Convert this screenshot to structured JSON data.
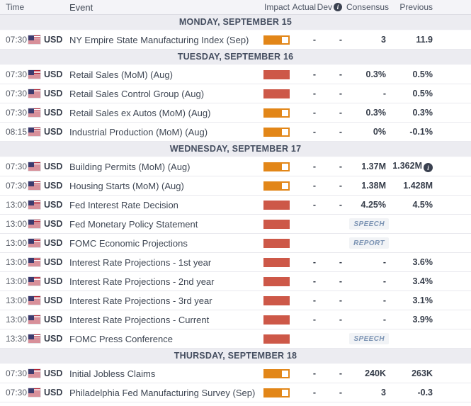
{
  "colors": {
    "impact_high": "#cd5848",
    "impact_medium": "#e28618",
    "flag_red": "#b22234",
    "flag_blue": "#3c3b6e",
    "section_bg": "#ececf1",
    "header_bg": "#f4f4f8",
    "badge_text": "#7b93b3"
  },
  "header": {
    "time": "Time",
    "event": "Event",
    "impact": "Impact",
    "actual": "Actual",
    "dev": "Dev",
    "dev_info_icon": "i",
    "consensus": "Consensus",
    "previous": "Previous"
  },
  "sections": [
    {
      "title": "MONDAY, SEPTEMBER 15",
      "rows": [
        {
          "time": "07:30",
          "currency": "USD",
          "event": "NY Empire State Manufacturing Index (Sep)",
          "impact": "medium",
          "actual": "-",
          "dev": "-",
          "consensus": "3",
          "previous": "11.9"
        }
      ]
    },
    {
      "title": "TUESDAY, SEPTEMBER 16",
      "rows": [
        {
          "time": "07:30",
          "currency": "USD",
          "event": "Retail Sales (MoM) (Aug)",
          "impact": "high",
          "actual": "-",
          "dev": "-",
          "consensus": "0.3%",
          "previous": "0.5%"
        },
        {
          "time": "07:30",
          "currency": "USD",
          "event": "Retail Sales Control Group (Aug)",
          "impact": "high",
          "actual": "-",
          "dev": "-",
          "consensus": "-",
          "previous": "0.5%"
        },
        {
          "time": "07:30",
          "currency": "USD",
          "event": "Retail Sales ex Autos (MoM) (Aug)",
          "impact": "medium",
          "actual": "-",
          "dev": "-",
          "consensus": "0.3%",
          "previous": "0.3%"
        },
        {
          "time": "08:15",
          "currency": "USD",
          "event": "Industrial Production (MoM) (Aug)",
          "impact": "medium",
          "actual": "-",
          "dev": "-",
          "consensus": "0%",
          "previous": "-0.1%"
        }
      ]
    },
    {
      "title": "WEDNESDAY, SEPTEMBER 17",
      "rows": [
        {
          "time": "07:30",
          "currency": "USD",
          "event": "Building Permits (MoM) (Aug)",
          "impact": "medium",
          "actual": "-",
          "dev": "-",
          "consensus": "1.37M",
          "previous": "1.362M",
          "previous_info_icon": "i"
        },
        {
          "time": "07:30",
          "currency": "USD",
          "event": "Housing Starts (MoM) (Aug)",
          "impact": "medium",
          "actual": "-",
          "dev": "-",
          "consensus": "1.38M",
          "previous": "1.428M"
        },
        {
          "time": "13:00",
          "currency": "USD",
          "event": "Fed Interest Rate Decision",
          "impact": "high",
          "actual": "-",
          "dev": "-",
          "consensus": "4.25%",
          "previous": "4.5%"
        },
        {
          "time": "13:00",
          "currency": "USD",
          "event": "Fed Monetary Policy Statement",
          "impact": "high",
          "badge": "SPEECH"
        },
        {
          "time": "13:00",
          "currency": "USD",
          "event": "FOMC Economic Projections",
          "impact": "high",
          "badge": "REPORT"
        },
        {
          "time": "13:00",
          "currency": "USD",
          "event": "Interest Rate Projections - 1st year",
          "impact": "high",
          "actual": "-",
          "dev": "-",
          "consensus": "-",
          "previous": "3.6%"
        },
        {
          "time": "13:00",
          "currency": "USD",
          "event": "Interest Rate Projections - 2nd year",
          "impact": "high",
          "actual": "-",
          "dev": "-",
          "consensus": "-",
          "previous": "3.4%"
        },
        {
          "time": "13:00",
          "currency": "USD",
          "event": "Interest Rate Projections - 3rd year",
          "impact": "high",
          "actual": "-",
          "dev": "-",
          "consensus": "-",
          "previous": "3.1%"
        },
        {
          "time": "13:00",
          "currency": "USD",
          "event": "Interest Rate Projections - Current",
          "impact": "high",
          "actual": "-",
          "dev": "-",
          "consensus": "-",
          "previous": "3.9%"
        },
        {
          "time": "13:30",
          "currency": "USD",
          "event": "FOMC Press Conference",
          "impact": "high",
          "badge": "SPEECH"
        }
      ]
    },
    {
      "title": "THURSDAY, SEPTEMBER 18",
      "rows": [
        {
          "time": "07:30",
          "currency": "USD",
          "event": "Initial Jobless Claims",
          "impact": "medium",
          "actual": "-",
          "dev": "-",
          "consensus": "240K",
          "previous": "263K"
        },
        {
          "time": "07:30",
          "currency": "USD",
          "event": "Philadelphia Fed Manufacturing Survey (Sep)",
          "impact": "medium",
          "actual": "-",
          "dev": "-",
          "consensus": "3",
          "previous": "-0.3"
        }
      ]
    }
  ]
}
